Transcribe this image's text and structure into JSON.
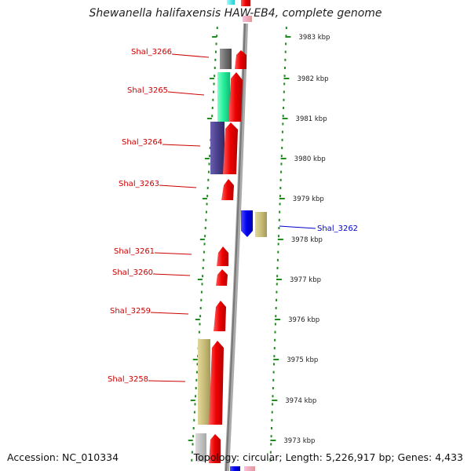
{
  "title": "Shewanella halifaxensis HAW-EB4, complete genome",
  "footer": {
    "accession": "Accession: NC_010334",
    "summary": "Topology: circular; Length: 5,226,917 bp; Genes: 4,433"
  },
  "ticks": [
    "3983 kbp",
    "3982 kbp",
    "3981 kbp",
    "3980 kbp",
    "3979 kbp",
    "3978 kbp",
    "3977 kbp",
    "3976 kbp",
    "3975 kbp",
    "3974 kbp",
    "3973 kbp"
  ],
  "genes": [
    {
      "label": "Shal_3266",
      "color": "#cc0000"
    },
    {
      "label": "Shal_3265",
      "color": "#cc0000"
    },
    {
      "label": "Shal_3264",
      "color": "#cc0000"
    },
    {
      "label": "Shal_3263",
      "color": "#cc0000"
    },
    {
      "label": "Shal_3262",
      "color": "#0000cc"
    },
    {
      "label": "Shal_3261",
      "color": "#cc0000"
    },
    {
      "label": "Shal_3260",
      "color": "#cc0000"
    },
    {
      "label": "Shal_3259",
      "color": "#cc0000"
    },
    {
      "label": "Shal_3258",
      "color": "#cc0000"
    }
  ],
  "colors": {
    "forward_arrow": "#ee0000",
    "reverse_arrow": "#0000ee",
    "cog_khaki": "#c8bd78",
    "cog_mint": "#22ee99",
    "cog_purple": "#4a3f8c",
    "cog_gray": "#6e6e6e",
    "tick_green": "#228b22"
  }
}
